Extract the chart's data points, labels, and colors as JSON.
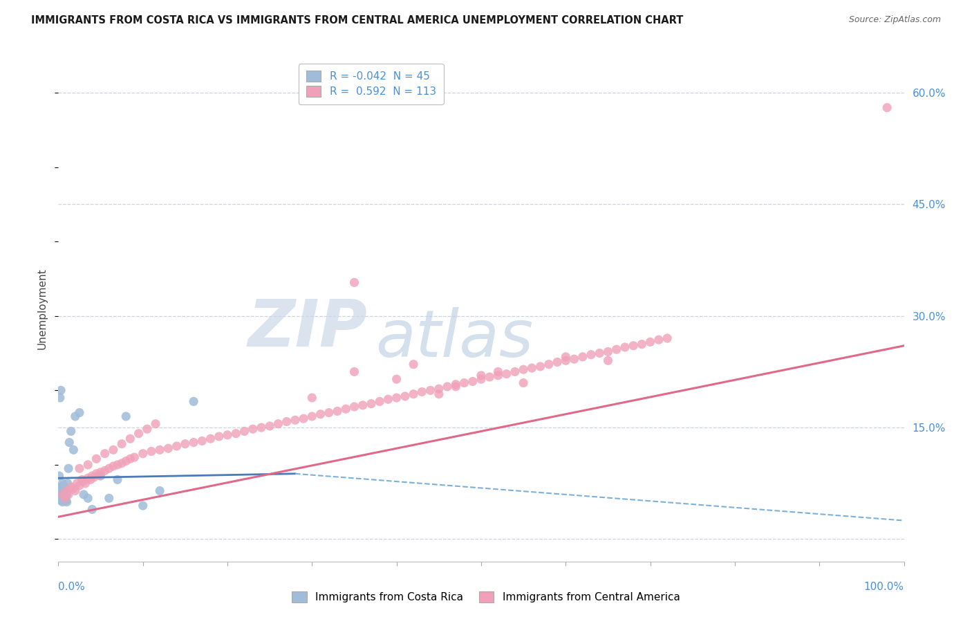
{
  "title": "IMMIGRANTS FROM COSTA RICA VS IMMIGRANTS FROM CENTRAL AMERICA UNEMPLOYMENT CORRELATION CHART",
  "source": "Source: ZipAtlas.com",
  "ylabel": "Unemployment",
  "xmin": 0.0,
  "xmax": 1.0,
  "ymin": -0.03,
  "ymax": 0.65,
  "yticks": [
    0.0,
    0.15,
    0.3,
    0.45,
    0.6
  ],
  "ytick_labels": [
    "",
    "15.0%",
    "30.0%",
    "45.0%",
    "60.0%"
  ],
  "axis_label_color": "#4a90d9",
  "background_color": "#ffffff",
  "grid_color": "#c8d4e8",
  "watermark_zip_color": "#ccd8e8",
  "watermark_atlas_color": "#b8cce0",
  "title_fontsize": 10.5,
  "source_fontsize": 9,
  "legend_R_blue": "-0.042",
  "legend_N_blue": "45",
  "legend_R_pink": "0.592",
  "legend_N_pink": "113",
  "blue_color": "#a0bcd8",
  "blue_trend_solid_color": "#4a7ab8",
  "blue_trend_dashed_color": "#7ab0dc",
  "pink_color": "#f0a0b8",
  "pink_trend_color": "#e06888",
  "blue_scatter_x": [
    0.001,
    0.002,
    0.002,
    0.003,
    0.003,
    0.003,
    0.004,
    0.004,
    0.004,
    0.005,
    0.005,
    0.005,
    0.005,
    0.006,
    0.006,
    0.006,
    0.007,
    0.007,
    0.007,
    0.008,
    0.008,
    0.009,
    0.009,
    0.01,
    0.01,
    0.011,
    0.012,
    0.013,
    0.015,
    0.018,
    0.02,
    0.025,
    0.03,
    0.035,
    0.04,
    0.05,
    0.06,
    0.07,
    0.08,
    0.1,
    0.12,
    0.16,
    0.002,
    0.003,
    0.004
  ],
  "blue_scatter_y": [
    0.085,
    0.06,
    0.055,
    0.068,
    0.06,
    0.052,
    0.07,
    0.062,
    0.055,
    0.075,
    0.065,
    0.058,
    0.05,
    0.072,
    0.064,
    0.055,
    0.068,
    0.06,
    0.052,
    0.065,
    0.055,
    0.062,
    0.052,
    0.06,
    0.05,
    0.075,
    0.095,
    0.13,
    0.145,
    0.12,
    0.165,
    0.17,
    0.06,
    0.055,
    0.04,
    0.085,
    0.055,
    0.08,
    0.165,
    0.045,
    0.065,
    0.185,
    0.19,
    0.2,
    0.07
  ],
  "pink_scatter_x": [
    0.005,
    0.008,
    0.01,
    0.012,
    0.015,
    0.018,
    0.02,
    0.022,
    0.025,
    0.028,
    0.03,
    0.032,
    0.035,
    0.038,
    0.04,
    0.042,
    0.045,
    0.048,
    0.05,
    0.055,
    0.06,
    0.065,
    0.07,
    0.075,
    0.08,
    0.085,
    0.09,
    0.1,
    0.11,
    0.12,
    0.13,
    0.14,
    0.15,
    0.16,
    0.17,
    0.18,
    0.19,
    0.2,
    0.21,
    0.22,
    0.23,
    0.24,
    0.25,
    0.26,
    0.27,
    0.28,
    0.29,
    0.3,
    0.31,
    0.32,
    0.33,
    0.34,
    0.35,
    0.36,
    0.37,
    0.38,
    0.39,
    0.4,
    0.41,
    0.42,
    0.43,
    0.44,
    0.45,
    0.46,
    0.47,
    0.48,
    0.49,
    0.5,
    0.51,
    0.52,
    0.53,
    0.54,
    0.55,
    0.56,
    0.57,
    0.58,
    0.59,
    0.6,
    0.61,
    0.62,
    0.63,
    0.64,
    0.65,
    0.66,
    0.67,
    0.68,
    0.69,
    0.7,
    0.71,
    0.72,
    0.025,
    0.035,
    0.045,
    0.055,
    0.065,
    0.075,
    0.085,
    0.095,
    0.105,
    0.115,
    0.3,
    0.35,
    0.4,
    0.45,
    0.5,
    0.55,
    0.6,
    0.65,
    0.35,
    0.98,
    0.42,
    0.47,
    0.52
  ],
  "pink_scatter_y": [
    0.06,
    0.055,
    0.065,
    0.06,
    0.07,
    0.068,
    0.065,
    0.075,
    0.072,
    0.08,
    0.078,
    0.075,
    0.082,
    0.08,
    0.085,
    0.083,
    0.088,
    0.086,
    0.09,
    0.092,
    0.095,
    0.098,
    0.1,
    0.102,
    0.105,
    0.108,
    0.11,
    0.115,
    0.118,
    0.12,
    0.122,
    0.125,
    0.128,
    0.13,
    0.132,
    0.135,
    0.138,
    0.14,
    0.142,
    0.145,
    0.148,
    0.15,
    0.152,
    0.155,
    0.158,
    0.16,
    0.162,
    0.165,
    0.168,
    0.17,
    0.172,
    0.175,
    0.178,
    0.18,
    0.182,
    0.185,
    0.188,
    0.19,
    0.192,
    0.195,
    0.198,
    0.2,
    0.202,
    0.205,
    0.208,
    0.21,
    0.212,
    0.215,
    0.218,
    0.22,
    0.222,
    0.225,
    0.228,
    0.23,
    0.232,
    0.235,
    0.238,
    0.24,
    0.242,
    0.245,
    0.248,
    0.25,
    0.252,
    0.255,
    0.258,
    0.26,
    0.262,
    0.265,
    0.268,
    0.27,
    0.095,
    0.1,
    0.108,
    0.115,
    0.12,
    0.128,
    0.135,
    0.142,
    0.148,
    0.155,
    0.19,
    0.225,
    0.215,
    0.195,
    0.22,
    0.21,
    0.245,
    0.24,
    0.345,
    0.58,
    0.235,
    0.205,
    0.225
  ],
  "blue_solid_trend_x": [
    0.0,
    0.28
  ],
  "blue_solid_trend_y": [
    0.082,
    0.088
  ],
  "blue_dashed_trend_x": [
    0.28,
    1.0
  ],
  "blue_dashed_trend_y": [
    0.088,
    0.025
  ],
  "pink_trend_x": [
    0.0,
    1.0
  ],
  "pink_trend_y": [
    0.03,
    0.26
  ]
}
